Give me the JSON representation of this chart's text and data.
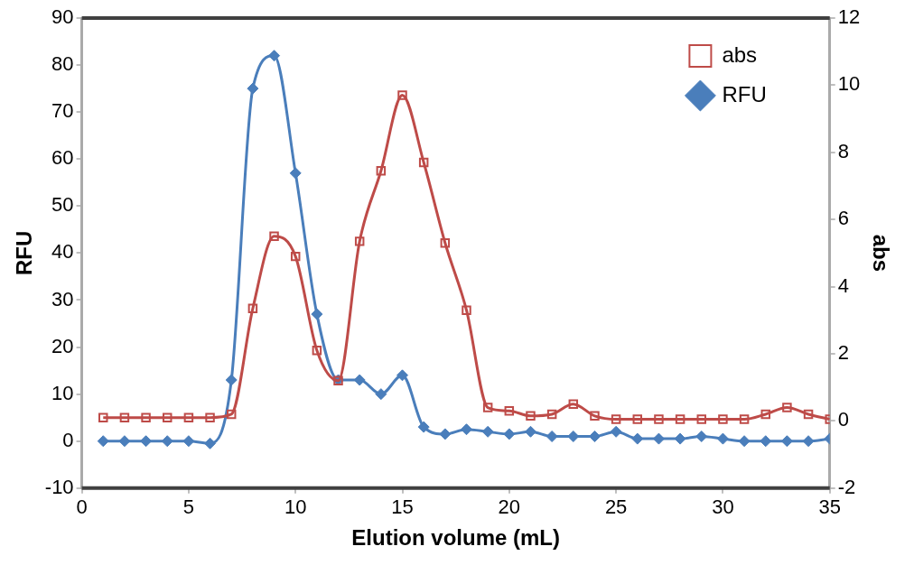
{
  "chart_data": {
    "type": "line",
    "xlabel": "Elution volume (mL)",
    "ylabel": "RFU",
    "y2label": "abs",
    "x": [
      1,
      2,
      3,
      4,
      5,
      6,
      7,
      8,
      9,
      10,
      11,
      12,
      13,
      14,
      15,
      16,
      17,
      18,
      19,
      20,
      21,
      22,
      23,
      24,
      25,
      26,
      27,
      28,
      29,
      30,
      31,
      32,
      33,
      34,
      35
    ],
    "xlim": [
      0,
      35
    ],
    "xticks": [
      0,
      5,
      10,
      15,
      20,
      25,
      30,
      35
    ],
    "ylim": [
      -10,
      90
    ],
    "yticks": [
      -10,
      0,
      10,
      20,
      30,
      40,
      50,
      60,
      70,
      80,
      90
    ],
    "y2lim": [
      -2,
      12
    ],
    "y2ticks": [
      -2,
      0,
      2,
      4,
      6,
      8,
      10,
      12
    ],
    "series": [
      {
        "name": "RFU",
        "color": "#4a7ebb",
        "marker": "diamond",
        "values": [
          0,
          0,
          0,
          0,
          0,
          -0.5,
          13,
          75,
          82,
          57,
          27,
          13,
          13,
          10,
          14,
          3,
          1.5,
          2.5,
          2,
          1.5,
          2,
          1,
          1,
          1,
          2,
          0.5,
          0.5,
          0.5,
          1,
          0.5,
          0,
          0,
          0,
          0,
          0.5
        ]
      },
      {
        "name": "abs",
        "color": "#be4b48",
        "marker": "square",
        "axis": "y2",
        "values": [
          0.1,
          0.1,
          0.1,
          0.1,
          0.1,
          0.1,
          0.2,
          3.35,
          5.5,
          4.9,
          2.1,
          1.2,
          5.35,
          7.45,
          9.7,
          7.7,
          5.3,
          3.3,
          0.4,
          0.3,
          0.15,
          0.2,
          0.5,
          0.15,
          0.05,
          0.05,
          0.05,
          0.05,
          0.05,
          0.05,
          0.05,
          0.2,
          0.4,
          0.2,
          0.05
        ]
      }
    ],
    "line_style": "solid",
    "grid": false,
    "legend": "top right"
  }
}
